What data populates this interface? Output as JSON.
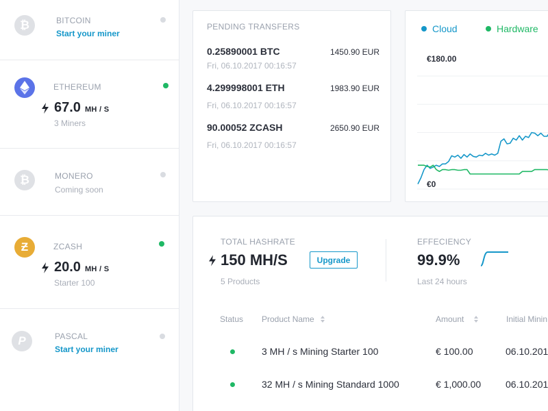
{
  "colors": {
    "accent": "#1597c9",
    "online": "#1fb865",
    "offline": "#d9dce1",
    "cloud": "#1597c9",
    "hardware": "#1fb865"
  },
  "coins": [
    {
      "name": "BITCOIN",
      "cta": "Start your miner",
      "status": "offline",
      "logo_glyph": "₿",
      "logo_color": "#dfe1e5",
      "icon": "bitcoin-icon"
    },
    {
      "name": "ETHEREUM",
      "rate": "67.0",
      "unit": "MH / S",
      "sub": "3 Miners",
      "status": "online",
      "logo_glyph": "◆",
      "logo_color": "#5b73e8",
      "icon": "ethereum-icon"
    },
    {
      "name": "MONERO",
      "sub": "Coming soon",
      "status": "offline",
      "logo_glyph": "₿",
      "logo_color": "#dfe1e5",
      "icon": "monero-icon"
    },
    {
      "name": "ZCASH",
      "rate": "20.0",
      "unit": "MH / S",
      "sub": "Starter 100",
      "status": "online",
      "logo_glyph": "Ƶ",
      "logo_color": "#e8ac36",
      "icon": "zcash-icon"
    },
    {
      "name": "PASCAL",
      "cta": "Start your miner",
      "status": "offline",
      "logo_glyph": "P",
      "logo_color": "#dfe1e5",
      "icon": "pascal-icon"
    }
  ],
  "pending": {
    "title": "PENDING TRANSFERS",
    "items": [
      {
        "amount": "0.25890001 BTC",
        "eur": "1450.90 EUR",
        "date": "Fri, 06.10.2017 00:16:57"
      },
      {
        "amount": "4.299998001 ETH",
        "eur": "1983.90 EUR",
        "date": "Fri, 06.10.2017 00:16:57"
      },
      {
        "amount": "90.00052 ZCASH",
        "eur": "2650.90 EUR",
        "date": "Fri, 06.10.2017 00:16:57"
      }
    ]
  },
  "chart_data": {
    "type": "line",
    "legend": "top",
    "y_top_label": "€180.00",
    "y_bottom_label": "€0",
    "ylim": [
      0,
      180
    ],
    "grid": true,
    "x": [
      0,
      1,
      2,
      3,
      4,
      5,
      6,
      7,
      8,
      9,
      10,
      11,
      12,
      13,
      14,
      15,
      16,
      17,
      18,
      19,
      20,
      21,
      22,
      23,
      24,
      25,
      26,
      27,
      28,
      29,
      30,
      31,
      32,
      33,
      34,
      35,
      36,
      37,
      38,
      39,
      40,
      41,
      42,
      43,
      44,
      45,
      46,
      47
    ],
    "series": [
      {
        "name": "Cloud",
        "color": "#1597c9",
        "values": [
          8,
          18,
          31,
          38,
          33,
          35,
          38,
          36,
          40,
          40,
          44,
          53,
          51,
          54,
          49,
          55,
          51,
          56,
          52,
          51,
          54,
          53,
          57,
          54,
          56,
          54,
          57,
          76,
          80,
          72,
          73,
          81,
          78,
          85,
          78,
          84,
          82,
          90,
          89,
          85,
          89,
          84,
          84,
          91,
          94,
          89,
          86,
          90
        ]
      },
      {
        "name": "Hardware",
        "color": "#1fb865",
        "values": [
          38,
          38,
          38,
          36,
          35,
          38,
          31,
          28,
          31,
          31,
          30,
          31,
          31,
          30,
          30,
          31,
          31,
          24,
          24,
          24,
          24,
          24,
          24,
          24,
          24,
          24,
          24,
          24,
          24,
          24,
          24,
          24,
          24,
          24,
          28,
          28,
          28,
          28,
          31,
          31,
          31,
          31,
          31,
          30,
          27,
          24,
          27,
          28
        ]
      }
    ]
  },
  "hashrate": {
    "label": "TOTAL HASHRATE",
    "value": "150 MH/S",
    "upgrade": "Upgrade",
    "products": "5 Products",
    "efficiency_label": "EFFECIENCY",
    "efficiency_value": "99.9%",
    "efficiency_period": "Last 24 hours"
  },
  "table": {
    "headers": [
      "Status",
      "Product Name",
      "Amount",
      "Initial Minin"
    ],
    "rows": [
      {
        "status": "online",
        "product": "3 MH / s Mining Starter 100",
        "amount": "€ 100.00",
        "initial": "06.10.201"
      },
      {
        "status": "online",
        "product": "32 MH / s Mining Standard 1000",
        "amount": "€ 1,000.00",
        "initial": "06.10.201"
      }
    ]
  }
}
